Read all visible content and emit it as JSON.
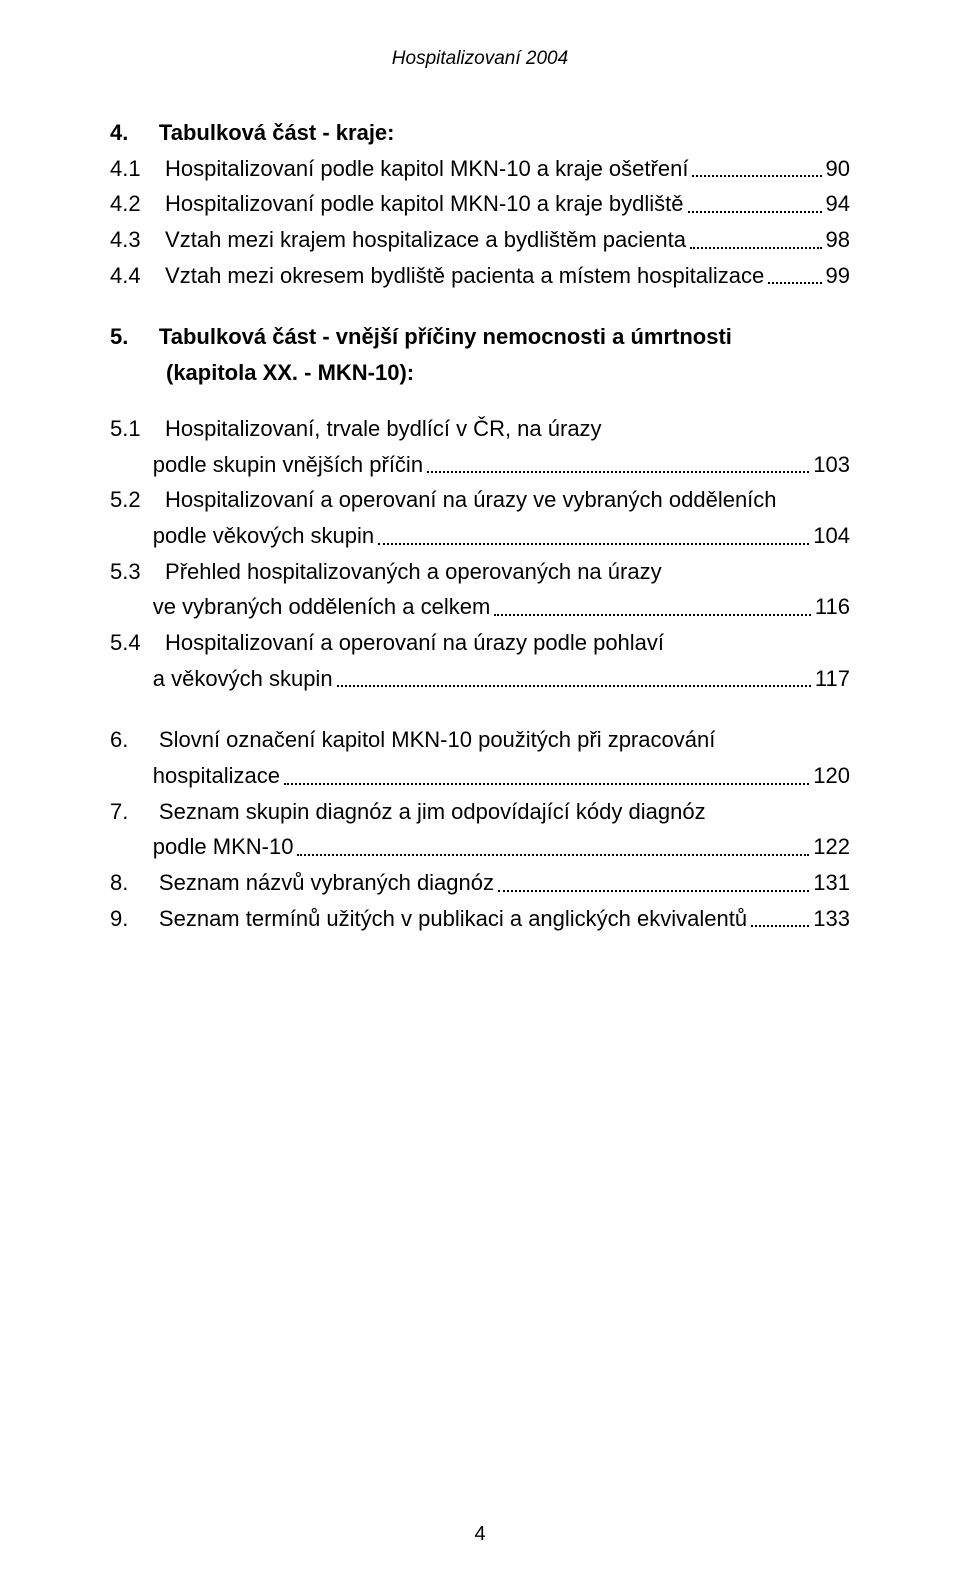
{
  "header": "Hospitalizovaní 2004",
  "page_number": "4",
  "toc": [
    {
      "type": "heading",
      "num": "4.",
      "text": "Tabulková část - kraje:"
    },
    {
      "type": "entry",
      "num": "4.1",
      "text": "Hospitalizovaní podle kapitol MKN-10 a kraje ošetření",
      "page": "90"
    },
    {
      "type": "entry",
      "num": "4.2",
      "text": "Hospitalizovaní podle kapitol MKN-10 a kraje bydliště",
      "page": "94"
    },
    {
      "type": "entry",
      "num": "4.3",
      "text": "Vztah mezi krajem hospitalizace a bydlištěm pacienta",
      "page": "98"
    },
    {
      "type": "entry",
      "num": "4.4",
      "text": "Vztah mezi okresem bydliště pacienta a místem hospitalizace",
      "page": "99"
    },
    {
      "type": "gap"
    },
    {
      "type": "heading",
      "num": "5.",
      "text": "Tabulková část - vnější příčiny nemocnosti a úmrtnosti",
      "cont": "(kapitola XX. - MKN-10):"
    },
    {
      "type": "gap"
    },
    {
      "type": "entry",
      "num": "5.1",
      "text": "Hospitalizovaní, trvale bydlící v ČR, na úrazy",
      "cont": "podle skupin vnějších příčin",
      "page": "103"
    },
    {
      "type": "entry",
      "num": "5.2",
      "text": "Hospitalizovaní a operovaní na úrazy ve vybraných odděleních",
      "cont": "podle věkových skupin",
      "page": "104"
    },
    {
      "type": "entry",
      "num": "5.3",
      "text": "Přehled hospitalizovaných a operovaných na úrazy",
      "cont": "ve vybraných odděleních a celkem",
      "page": "116"
    },
    {
      "type": "entry",
      "num": "5.4",
      "text": "Hospitalizovaní a operovaní na úrazy podle pohlaví",
      "cont": "a věkových skupin",
      "page": "117"
    },
    {
      "type": "gap"
    },
    {
      "type": "entry",
      "num": "6.",
      "text": "Slovní označení kapitol MKN-10 použitých při zpracování",
      "cont": "hospitalizace",
      "page": "120"
    },
    {
      "type": "entry",
      "num": "7.",
      "text": "Seznam skupin diagnóz a jim odpovídající kódy diagnóz",
      "cont": "podle MKN-10",
      "page": "122"
    },
    {
      "type": "entry",
      "num": "8.",
      "text": "Seznam názvů vybraných diagnóz",
      "page": "131"
    },
    {
      "type": "entry",
      "num": "9.",
      "text": "Seznam termínů užitých v publikaci a anglických ekvivalentů",
      "page": "133"
    }
  ]
}
